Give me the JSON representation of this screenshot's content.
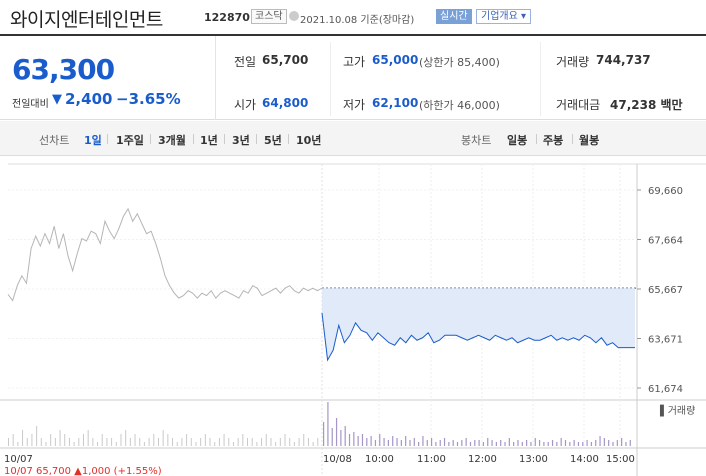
{
  "header": {
    "name": "와이지엔터테인먼트",
    "code": "122870",
    "market": "코스닥",
    "date": "2021.10.08 기준(장마감)",
    "live": "실시간",
    "corp_overview": "기업개요 ▾"
  },
  "summary": {
    "price": "63,300",
    "change_label": "전일대비",
    "change_arrow": "▼",
    "change": "2,400",
    "change_pct": "−3.65%",
    "items": [
      {
        "label": "전일",
        "value": "65,700",
        "color": "black"
      },
      {
        "label": "고가",
        "value": "65,000",
        "sub": "(상한가 85,400)",
        "color": "blue"
      },
      {
        "label": "거래량",
        "value": "744,737",
        "color": "black"
      },
      {
        "label": "시가",
        "value": "64,800",
        "color": "blue"
      },
      {
        "label": "저가",
        "value": "62,100",
        "sub": "(하한가 46,000)",
        "color": "blue"
      },
      {
        "label": "거래대금",
        "value": "47,238 백만",
        "color": "black"
      }
    ]
  },
  "tabs": {
    "line_label": "선차트",
    "line_tabs": [
      "1일",
      "1주일",
      "3개월",
      "1년",
      "3년",
      "5년",
      "10년"
    ],
    "active": "1일",
    "candle_label": "봉차트",
    "candle_tabs": [
      "일봉",
      "주봉",
      "월봉"
    ]
  },
  "colors": {
    "blue": "#1a5ccc",
    "red": "#e0302a",
    "gray_line": "#b5b5b5",
    "volume": "#a596c8"
  },
  "chart_data": {
    "type": "line",
    "price_ticks": [
      "69,660",
      "67,664",
      "65,667",
      "63,671",
      "61,674"
    ],
    "ylim": [
      61674,
      69660
    ],
    "previous_day": {
      "x_label": "10/07",
      "close_label": "65,700",
      "change": "▲1,000",
      "change_pct": "(+1.55%)",
      "values": [
        65450,
        65200,
        65800,
        66200,
        65900,
        67300,
        67800,
        67400,
        67900,
        67500,
        68200,
        67300,
        67900,
        67000,
        66400,
        67100,
        67700,
        67600,
        68000,
        67900,
        67500,
        68400,
        68000,
        67700,
        68100,
        68600,
        68900,
        68400,
        68700,
        68300,
        67900,
        68000,
        67500,
        66900,
        66200,
        65800,
        65500,
        65300,
        65400,
        65600,
        65500,
        65300,
        65500,
        65400,
        65600,
        65300,
        65500,
        65600,
        65500,
        65400,
        65300,
        65600,
        65500,
        65800,
        65700,
        65400,
        65500,
        65600,
        65700,
        65500,
        65700,
        65800,
        65600,
        65500,
        65700,
        65600,
        65700,
        65600,
        65700
      ]
    },
    "current_day": {
      "x_label": "10/08",
      "time_ticks": [
        "10:00",
        "11:00",
        "12:00",
        "13:00",
        "14:00",
        "15:00"
      ],
      "reference_price": 65700,
      "values": [
        64700,
        62800,
        63200,
        64200,
        63500,
        63800,
        64300,
        64000,
        63900,
        63600,
        63900,
        63700,
        63500,
        63400,
        63700,
        63500,
        63800,
        63600,
        63700,
        63900,
        63500,
        63600,
        63800,
        63800,
        63800,
        63700,
        63600,
        63700,
        63800,
        63700,
        63600,
        63800,
        63700,
        63600,
        63700,
        63500,
        63600,
        63700,
        63600,
        63600,
        63700,
        63800,
        63600,
        63700,
        63600,
        63700,
        63600,
        63800,
        63700,
        63500,
        63700,
        63400,
        63500,
        63300,
        63300,
        63300,
        63300
      ]
    },
    "volume_label": "거래량",
    "volume_prev": [
      2,
      3,
      1,
      4,
      2,
      3,
      5,
      2,
      1,
      3,
      2,
      4,
      3,
      2,
      1,
      2,
      3,
      4,
      2,
      1,
      3,
      2,
      2,
      1,
      3,
      4,
      2,
      3,
      2,
      1,
      2,
      3,
      2,
      4,
      3,
      2,
      1,
      2,
      3,
      2,
      1,
      2,
      3,
      2,
      1,
      2,
      3,
      2,
      1,
      2,
      3,
      2,
      2,
      1,
      2,
      3,
      2,
      1,
      2,
      3,
      2,
      1,
      2,
      3,
      2,
      1,
      2
    ],
    "volume_curr": [
      12,
      22,
      9,
      14,
      8,
      10,
      6,
      7,
      5,
      6,
      4,
      5,
      3,
      6,
      4,
      3,
      5,
      4,
      3,
      5,
      3,
      4,
      2,
      5,
      3,
      4,
      2,
      3,
      4,
      2,
      3,
      2,
      3,
      4,
      2,
      3,
      3,
      2,
      4,
      3,
      2,
      3,
      2,
      4,
      2,
      3,
      2,
      3,
      2,
      4,
      3,
      2,
      2,
      3,
      2,
      4,
      3,
      2,
      3,
      2,
      2,
      3,
      2,
      3,
      5,
      4,
      3,
      2,
      3,
      4,
      2,
      3
    ]
  }
}
